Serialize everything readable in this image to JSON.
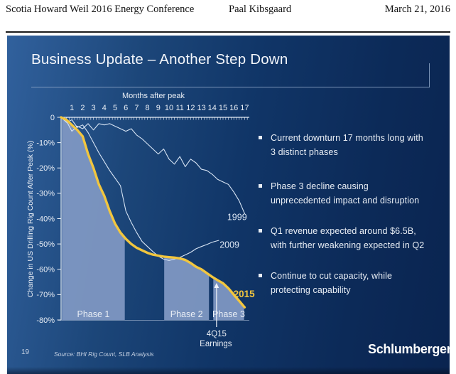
{
  "header": {
    "left": "Scotia Howard Weil 2016 Energy Conference",
    "center": "Paal Kibsgaard",
    "right": "March 21, 2016"
  },
  "slide": {
    "title": "Business Update – Another Step Down",
    "page_number": "19",
    "source": "Source: BHI Rig Count, SLB Analysis",
    "logo": "Schlumberger",
    "bullets": [
      "Current downturn 17 months long with\n3 distinct phases",
      "Phase 3 decline causing\nunprecedented impact and disruption",
      "Q1 revenue expected around $6.5B,\nwith further weakening expected in Q2",
      "Continue to cut capacity, while\nprotecting capability"
    ],
    "colors": {
      "accent_yellow": "#f2c63e",
      "band_fill": "#7e97c2",
      "line_light": "#d7e4f4",
      "text_light": "#e9eef5",
      "axis": "#e8eef7"
    }
  },
  "chart_data": {
    "type": "line",
    "title": "",
    "xlabel": "Months after peak",
    "ylabel": "Change in US Drilling Rig Count After Peak (%)",
    "x_ticks": [
      "1",
      "2",
      "3",
      "4",
      "5",
      "6",
      "7",
      "8",
      "9",
      "10",
      "11",
      "12",
      "13",
      "14",
      "15",
      "16",
      "17"
    ],
    "y_ticks": [
      {
        "v": 0,
        "label": "0"
      },
      {
        "v": -10,
        "label": "-10%"
      },
      {
        "v": -20,
        "label": "-20%"
      },
      {
        "v": -30,
        "label": "-30%"
      },
      {
        "v": -40,
        "label": "-40%"
      },
      {
        "v": -50,
        "label": "-50%"
      },
      {
        "v": -60,
        "label": "-60%"
      },
      {
        "v": -70,
        "label": "-70%"
      },
      {
        "v": -80,
        "label": "-80%"
      }
    ],
    "xlim": [
      0,
      17.2
    ],
    "ylim": [
      -80,
      0
    ],
    "grid": false,
    "series": [
      {
        "name": "1999",
        "color": "#d7e4f4",
        "width": 1.1,
        "label": {
          "m": 16.3,
          "v": -40.5,
          "size": 12.5,
          "bold": false
        },
        "x": [
          0,
          0.5,
          1,
          1.5,
          2,
          2.5,
          3,
          3.5,
          4,
          4.5,
          5,
          5.5,
          6,
          6.5,
          7,
          7.5,
          8,
          8.5,
          9,
          9.5,
          10,
          10.5,
          11,
          11.5,
          12,
          12.5,
          13,
          13.5,
          14,
          14.5,
          15,
          15.5,
          16,
          16.5,
          17
        ],
        "y": [
          0,
          -1.5,
          -5.5,
          -3.5,
          -4.5,
          -2.5,
          -5,
          -2.5,
          -3,
          -2.5,
          -3.5,
          -4.5,
          -5.5,
          -4.5,
          -7,
          -8.5,
          -10.5,
          -12.5,
          -14.5,
          -12.5,
          -16.5,
          -18.5,
          -15.5,
          -19.5,
          -16.5,
          -18,
          -20.5,
          -21,
          -22.5,
          -24.5,
          -25.5,
          -26.5,
          -29.5,
          -33,
          -38
        ]
      },
      {
        "name": "2009",
        "color": "#d7e4f4",
        "width": 1.1,
        "label": {
          "m": 15.6,
          "v": -51.5,
          "size": 12.5,
          "bold": false
        },
        "x": [
          0,
          0.5,
          1,
          1.5,
          2,
          2.5,
          3,
          3.5,
          4,
          4.5,
          5,
          5.5,
          6,
          6.5,
          7,
          7.5,
          8,
          8.5,
          9,
          9.5,
          10,
          10.5,
          11,
          11.5,
          12,
          12.5,
          13,
          13.5,
          14,
          14.6
        ],
        "y": [
          0,
          -2,
          -1,
          -4,
          -3,
          -6,
          -10,
          -14,
          -17.5,
          -21,
          -24,
          -27,
          -37,
          -41.5,
          -45.5,
          -49,
          -51,
          -53,
          -54.8,
          -56,
          -56.5,
          -56,
          -55.3,
          -54.3,
          -53.3,
          -51.9,
          -51,
          -50.2,
          -49.3,
          -48.6
        ]
      },
      {
        "name": "2015",
        "color": "#f2c63e",
        "width": 3.4,
        "label": {
          "m": 16.95,
          "v": -71,
          "size": 13.5,
          "bold": true
        },
        "x": [
          0,
          0.5,
          1,
          1.5,
          2,
          2.5,
          3,
          3.5,
          4,
          4.5,
          5,
          5.5,
          6,
          6.5,
          7,
          7.5,
          8,
          8.5,
          9,
          9.5,
          10,
          10.5,
          11,
          11.5,
          12,
          12.5,
          13,
          13.5,
          14,
          14.5,
          15,
          15.5,
          16,
          16.5,
          17
        ],
        "y": [
          0,
          -1,
          -3,
          -5,
          -7.5,
          -14.5,
          -20,
          -26.5,
          -31,
          -37,
          -42,
          -45.5,
          -48,
          -50,
          -51.5,
          -52.5,
          -53.5,
          -54.2,
          -54.6,
          -55,
          -55.2,
          -55.4,
          -55.7,
          -56.3,
          -57.5,
          -59,
          -60,
          -61.5,
          -63,
          -64.3,
          -65.5,
          -67.5,
          -70,
          -72.5,
          -75
        ]
      }
    ],
    "fill_series": "2015",
    "fill_color": "#7e97c2",
    "phases": [
      {
        "label": "Phase 1",
        "from": 0.08,
        "to": 5.9
      },
      {
        "label": "Phase 2",
        "from": 9.55,
        "to": 13.7
      },
      {
        "label": "Phase 3",
        "from": 14.1,
        "to": 16.95
      }
    ],
    "annotation": {
      "lines": [
        "4Q15",
        "Earnings"
      ],
      "month": 14.4,
      "target_value": -64
    }
  }
}
